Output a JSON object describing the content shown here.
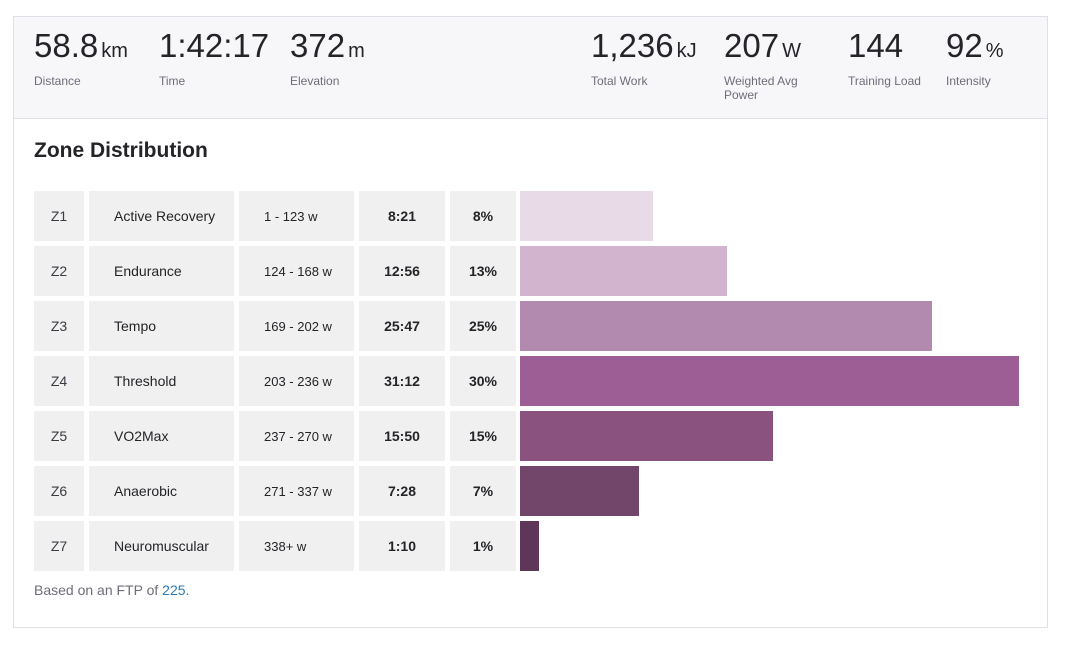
{
  "stats_left": [
    {
      "value": "58.8",
      "unit": "km",
      "label": "Distance"
    },
    {
      "value": "1:42:17",
      "unit": "",
      "label": "Time"
    },
    {
      "value": "372",
      "unit": "m",
      "label": "Elevation"
    }
  ],
  "stats_right": [
    {
      "value": "1,236",
      "unit": "kJ",
      "label": "Total Work"
    },
    {
      "value": "207",
      "unit": "W",
      "label": "Weighted Avg Power"
    },
    {
      "value": "144",
      "unit": "",
      "label": "Training Load"
    },
    {
      "value": "92",
      "unit": "%",
      "label": "Intensity"
    }
  ],
  "zone_section": {
    "title": "Zone Distribution",
    "zones": [
      {
        "code": "Z1",
        "name": "Active Recovery",
        "range": "1 - 123 w",
        "time": "8:21",
        "percent": "8%",
        "fraction": 0.267,
        "color": "#e8dbe7"
      },
      {
        "code": "Z2",
        "name": "Endurance",
        "range": "124 - 168 w",
        "time": "12:56",
        "percent": "13%",
        "fraction": 0.415,
        "color": "#d2b4cf"
      },
      {
        "code": "Z3",
        "name": "Tempo",
        "range": "169 - 202 w",
        "time": "25:47",
        "percent": "25%",
        "fraction": 0.826,
        "color": "#b38aaf"
      },
      {
        "code": "Z4",
        "name": "Threshold",
        "range": "203 - 236 w",
        "time": "31:12",
        "percent": "30%",
        "fraction": 1.0,
        "color": "#9c5e94"
      },
      {
        "code": "Z5",
        "name": "VO2Max",
        "range": "237 - 270 w",
        "time": "15:50",
        "percent": "15%",
        "fraction": 0.507,
        "color": "#8a527f"
      },
      {
        "code": "Z6",
        "name": "Anaerobic",
        "range": "271 - 337 w",
        "time": "7:28",
        "percent": "7%",
        "fraction": 0.238,
        "color": "#72456a"
      },
      {
        "code": "Z7",
        "name": "Neuromuscular",
        "range": "338+ w",
        "time": "1:10",
        "percent": "1%",
        "fraction": 0.038,
        "color": "#5e3657"
      }
    ]
  },
  "ftp_note": {
    "prefix": "Based on an FTP of ",
    "value": "225",
    "suffix": "."
  }
}
